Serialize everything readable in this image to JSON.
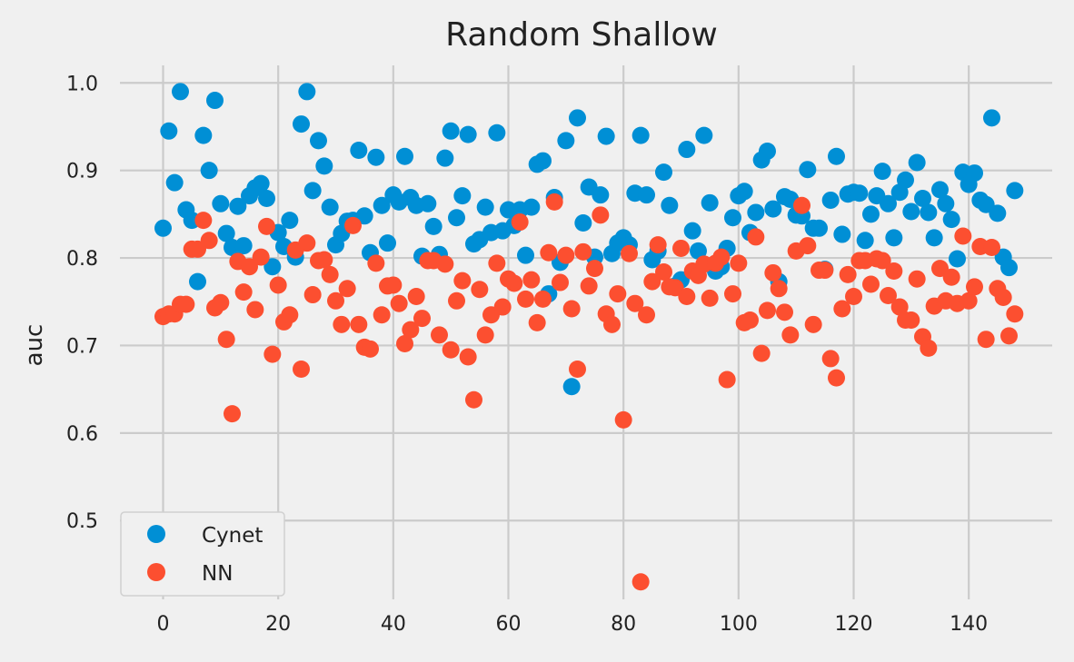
{
  "chart_data": {
    "type": "scatter",
    "title": "Random Shallow",
    "xlabel": "",
    "ylabel": "auc",
    "xlim": [
      -7.5,
      154.5
    ],
    "ylim": [
      0.41,
      1.02
    ],
    "xticks": [
      0,
      20,
      40,
      60,
      80,
      100,
      120,
      140
    ],
    "yticks": [
      0.5,
      0.6,
      0.7,
      0.8,
      0.9,
      1.0
    ],
    "ytick_labels": [
      "0.5",
      "0.6",
      "0.7",
      "0.8",
      "0.9",
      "1.0"
    ],
    "grid": true,
    "legend_position": "lower-left",
    "series": [
      {
        "name": "Cynet",
        "color": "#008fd5",
        "x": [
          0,
          1,
          2,
          3,
          4,
          5,
          6,
          7,
          8,
          9,
          10,
          11,
          12,
          13,
          14,
          15,
          16,
          17,
          18,
          19,
          20,
          21,
          22,
          23,
          24,
          25,
          26,
          27,
          28,
          29,
          30,
          31,
          32,
          33,
          34,
          35,
          36,
          37,
          38,
          39,
          40,
          41,
          42,
          43,
          44,
          45,
          46,
          47,
          48,
          49,
          50,
          51,
          52,
          53,
          54,
          55,
          56,
          57,
          58,
          59,
          60,
          61,
          62,
          63,
          64,
          65,
          66,
          67,
          68,
          69,
          70,
          71,
          72,
          73,
          74,
          75,
          76,
          77,
          78,
          79,
          80,
          81,
          82,
          83,
          84,
          85,
          86,
          87,
          88,
          89,
          90,
          91,
          92,
          93,
          94,
          95,
          96,
          97,
          98,
          99,
          100,
          101,
          102,
          103,
          104,
          105,
          106,
          107,
          108,
          109,
          110,
          111,
          112,
          113,
          114,
          115,
          116,
          117,
          118,
          119,
          120,
          121,
          122,
          123,
          124,
          125,
          126,
          127,
          128,
          129,
          130,
          131,
          132,
          133,
          134,
          135,
          136,
          137,
          138,
          139,
          140,
          141,
          142,
          143,
          144,
          145,
          146,
          147,
          148
        ],
        "y": [
          0.834,
          0.945,
          0.886,
          0.99,
          0.855,
          0.843,
          0.773,
          0.94,
          0.9,
          0.98,
          0.862,
          0.828,
          0.812,
          0.859,
          0.814,
          0.871,
          0.88,
          0.885,
          0.868,
          0.79,
          0.829,
          0.813,
          0.843,
          0.801,
          0.953,
          0.99,
          0.877,
          0.934,
          0.905,
          0.858,
          0.815,
          0.828,
          0.842,
          0.843,
          0.923,
          0.848,
          0.806,
          0.915,
          0.86,
          0.817,
          0.872,
          0.864,
          0.916,
          0.869,
          0.86,
          0.802,
          0.862,
          0.836,
          0.804,
          0.914,
          0.945,
          0.846,
          0.871,
          0.941,
          0.816,
          0.821,
          0.858,
          0.829,
          0.943,
          0.831,
          0.855,
          0.837,
          0.855,
          0.803,
          0.858,
          0.907,
          0.911,
          0.759,
          0.869,
          0.795,
          0.934,
          0.653,
          0.96,
          0.84,
          0.881,
          0.801,
          0.872,
          0.939,
          0.805,
          0.817,
          0.823,
          0.815,
          0.874,
          0.94,
          0.872,
          0.798,
          0.808,
          0.898,
          0.86,
          0.768,
          0.775,
          0.924,
          0.831,
          0.808,
          0.94,
          0.863,
          0.785,
          0.79,
          0.811,
          0.846,
          0.871,
          0.876,
          0.829,
          0.852,
          0.912,
          0.922,
          0.856,
          0.773,
          0.87,
          0.867,
          0.849,
          0.848,
          0.901,
          0.834,
          0.834,
          0.787,
          0.866,
          0.916,
          0.827,
          0.873,
          0.875,
          0.874,
          0.82,
          0.85,
          0.871,
          0.899,
          0.862,
          0.823,
          0.875,
          0.889,
          0.853,
          0.909,
          0.868,
          0.852,
          0.823,
          0.878,
          0.862,
          0.844,
          0.799,
          0.898,
          0.884,
          0.897,
          0.866,
          0.861,
          0.96,
          0.851,
          0.801,
          0.789,
          0.877
        ]
      },
      {
        "name": "NN",
        "color": "#fc4f30",
        "x": [
          0,
          1,
          2,
          3,
          4,
          5,
          6,
          7,
          8,
          9,
          10,
          11,
          12,
          13,
          14,
          15,
          16,
          17,
          18,
          19,
          20,
          21,
          22,
          23,
          24,
          25,
          26,
          27,
          28,
          29,
          30,
          31,
          32,
          33,
          34,
          35,
          36,
          37,
          38,
          39,
          40,
          41,
          42,
          43,
          44,
          45,
          46,
          47,
          48,
          49,
          50,
          51,
          52,
          53,
          54,
          55,
          56,
          57,
          58,
          59,
          60,
          61,
          62,
          63,
          64,
          65,
          66,
          67,
          68,
          69,
          70,
          71,
          72,
          73,
          74,
          75,
          76,
          77,
          78,
          79,
          80,
          81,
          82,
          83,
          84,
          85,
          86,
          87,
          88,
          89,
          90,
          91,
          92,
          93,
          94,
          95,
          96,
          97,
          98,
          99,
          100,
          101,
          102,
          103,
          104,
          105,
          106,
          107,
          108,
          109,
          110,
          111,
          112,
          113,
          114,
          115,
          116,
          117,
          118,
          119,
          120,
          121,
          122,
          123,
          124,
          125,
          126,
          127,
          128,
          129,
          130,
          131,
          132,
          133,
          134,
          135,
          136,
          137,
          138,
          139,
          140,
          141,
          142,
          143,
          144,
          145,
          146,
          147,
          148
        ],
        "y": [
          0.733,
          0.736,
          0.736,
          0.747,
          0.747,
          0.81,
          0.81,
          0.843,
          0.82,
          0.743,
          0.749,
          0.707,
          0.622,
          0.796,
          0.761,
          0.79,
          0.741,
          0.801,
          0.836,
          0.69,
          0.769,
          0.727,
          0.735,
          0.809,
          0.673,
          0.817,
          0.758,
          0.797,
          0.798,
          0.781,
          0.751,
          0.724,
          0.765,
          0.837,
          0.724,
          0.698,
          0.696,
          0.794,
          0.735,
          0.768,
          0.769,
          0.748,
          0.702,
          0.718,
          0.756,
          0.731,
          0.797,
          0.797,
          0.712,
          0.793,
          0.695,
          0.751,
          0.774,
          0.687,
          0.638,
          0.764,
          0.712,
          0.735,
          0.794,
          0.744,
          0.776,
          0.771,
          0.841,
          0.753,
          0.775,
          0.726,
          0.753,
          0.806,
          0.864,
          0.772,
          0.803,
          0.742,
          0.673,
          0.807,
          0.768,
          0.788,
          0.849,
          0.736,
          0.724,
          0.759,
          0.615,
          0.805,
          0.748,
          0.43,
          0.735,
          0.773,
          0.815,
          0.784,
          0.767,
          0.766,
          0.811,
          0.756,
          0.785,
          0.78,
          0.793,
          0.754,
          0.794,
          0.801,
          0.661,
          0.759,
          0.794,
          0.726,
          0.729,
          0.824,
          0.691,
          0.74,
          0.783,
          0.765,
          0.738,
          0.712,
          0.808,
          0.86,
          0.814,
          0.724,
          0.786,
          0.786,
          0.685,
          0.663,
          0.742,
          0.781,
          0.756,
          0.797,
          0.797,
          0.77,
          0.799,
          0.797,
          0.757,
          0.785,
          0.744,
          0.729,
          0.729,
          0.776,
          0.71,
          0.697,
          0.745,
          0.788,
          0.751,
          0.778,
          0.748,
          0.825,
          0.751,
          0.767,
          0.813,
          0.707,
          0.812,
          0.765,
          0.755,
          0.711,
          0.736
        ]
      }
    ]
  }
}
